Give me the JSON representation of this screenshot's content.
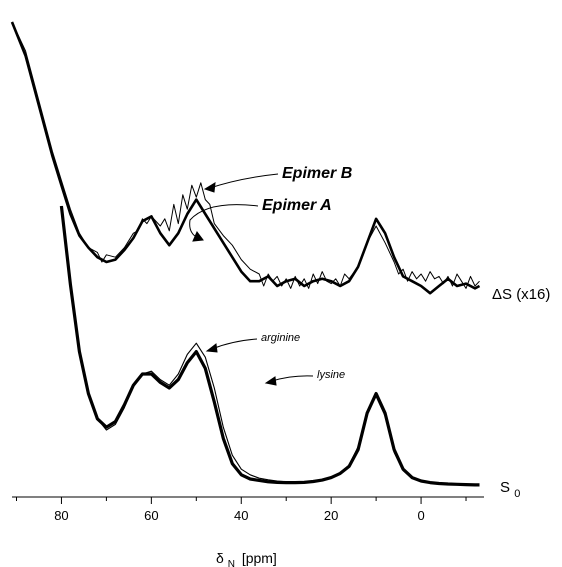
{
  "chart_data": {
    "type": "line",
    "xlabel_main": "δ",
    "xlabel_sub": "N",
    "xlabel_unit": "[ppm]",
    "x_reversed": true,
    "xlim": [
      -14,
      91
    ],
    "xticks": [
      80,
      60,
      40,
      20,
      0
    ],
    "xticklabels": [
      "80",
      "60",
      "40",
      "20",
      "0"
    ],
    "grid": false,
    "label_s0_main": "S",
    "label_s0_sub": "0",
    "label_ds": "ΔS (x16)",
    "annotations": {
      "epimer_b": "Epimer B",
      "epimer_a": "Epimer A",
      "arginine": "arginine",
      "lysine": "lysine"
    },
    "series": [
      {
        "name": "S0 (thick)",
        "x": [
          80,
          78,
          76,
          74,
          72,
          70,
          68,
          66,
          64,
          62,
          60,
          58,
          56,
          54,
          52,
          50,
          48,
          46,
          44,
          42,
          40,
          38,
          36,
          34,
          32,
          30,
          28,
          26,
          24,
          22,
          20,
          18,
          16,
          14,
          12,
          10,
          8,
          6,
          4,
          2,
          0,
          -2,
          -4,
          -6,
          -8,
          -10,
          -12,
          -13
        ],
        "y": [
          1.0,
          0.72,
          0.48,
          0.33,
          0.24,
          0.21,
          0.23,
          0.29,
          0.36,
          0.4,
          0.4,
          0.37,
          0.35,
          0.38,
          0.44,
          0.48,
          0.42,
          0.3,
          0.17,
          0.08,
          0.04,
          0.025,
          0.02,
          0.015,
          0.013,
          0.012,
          0.012,
          0.013,
          0.016,
          0.021,
          0.03,
          0.045,
          0.07,
          0.13,
          0.26,
          0.33,
          0.26,
          0.13,
          0.06,
          0.03,
          0.018,
          0.012,
          0.009,
          0.007,
          0.006,
          0.005,
          0.004,
          0.004
        ]
      },
      {
        "name": "S0 (thin)",
        "x": [
          80,
          78,
          76,
          74,
          72,
          70,
          68,
          66,
          64,
          62,
          60,
          58,
          56,
          54,
          52,
          50,
          48,
          46,
          44,
          42,
          40,
          38,
          36,
          34,
          32,
          30,
          28,
          26,
          24,
          22,
          20,
          18,
          16,
          14,
          12,
          10,
          8,
          6,
          4,
          2,
          0,
          -2,
          -4,
          -6,
          -8,
          -10,
          -12,
          -13
        ],
        "y": [
          1.0,
          0.73,
          0.49,
          0.33,
          0.24,
          0.2,
          0.22,
          0.28,
          0.36,
          0.4,
          0.41,
          0.38,
          0.36,
          0.4,
          0.47,
          0.51,
          0.46,
          0.35,
          0.21,
          0.11,
          0.06,
          0.04,
          0.028,
          0.022,
          0.018,
          0.015,
          0.014,
          0.015,
          0.018,
          0.023,
          0.032,
          0.048,
          0.075,
          0.14,
          0.26,
          0.32,
          0.25,
          0.12,
          0.055,
          0.028,
          0.016,
          0.011,
          0.008,
          0.006,
          0.005,
          0.005,
          0.004,
          0.004
        ]
      },
      {
        "name": "ΔS thick (Epimer A)",
        "x": [
          91,
          88,
          86,
          84,
          82,
          80,
          78,
          76,
          74,
          72,
          70,
          68,
          66,
          64,
          62,
          60,
          58,
          56,
          54,
          52,
          50,
          48,
          46,
          44,
          42,
          40,
          38,
          36,
          34,
          32,
          30,
          28,
          26,
          24,
          22,
          20,
          18,
          16,
          14,
          12,
          10,
          8,
          6,
          4,
          2,
          0,
          -2,
          -4,
          -6,
          -8,
          -10,
          -12,
          -13
        ],
        "y": [
          1.0,
          0.86,
          0.72,
          0.58,
          0.44,
          0.32,
          0.2,
          0.11,
          0.06,
          0.02,
          0.0,
          0.01,
          0.05,
          0.1,
          0.17,
          0.19,
          0.12,
          0.07,
          0.12,
          0.2,
          0.26,
          0.2,
          0.14,
          0.08,
          0.02,
          -0.04,
          -0.08,
          -0.08,
          -0.06,
          -0.1,
          -0.08,
          -0.07,
          -0.1,
          -0.08,
          -0.07,
          -0.08,
          -0.1,
          -0.08,
          -0.02,
          0.08,
          0.18,
          0.12,
          0.02,
          -0.06,
          -0.08,
          -0.1,
          -0.13,
          -0.1,
          -0.07,
          -0.1,
          -0.09,
          -0.11,
          -0.1
        ]
      },
      {
        "name": "ΔS thin (Epimer B)",
        "x": [
          91,
          88,
          86,
          84,
          82,
          80,
          78,
          76,
          74,
          72,
          71,
          70,
          68,
          66,
          64,
          63,
          62,
          61,
          60,
          58,
          57,
          56,
          55,
          54,
          53,
          52,
          51,
          50,
          49,
          48,
          47,
          46,
          44,
          42,
          40,
          38,
          36,
          35,
          34,
          33,
          32,
          31,
          30,
          29,
          28,
          27,
          26,
          25,
          24,
          23,
          22,
          21,
          20,
          19,
          18,
          17,
          16,
          14,
          12,
          10,
          8,
          6,
          5,
          4,
          3,
          2,
          1,
          0,
          -1,
          -2,
          -3,
          -4,
          -5,
          -6,
          -7,
          -8,
          -9,
          -10,
          -11,
          -12,
          -13
        ],
        "y": [
          1.0,
          0.88,
          0.74,
          0.6,
          0.46,
          0.34,
          0.22,
          0.12,
          0.06,
          0.04,
          0.0,
          0.03,
          0.02,
          0.06,
          0.12,
          0.13,
          0.18,
          0.16,
          0.19,
          0.15,
          0.18,
          0.13,
          0.24,
          0.16,
          0.28,
          0.22,
          0.32,
          0.27,
          0.33,
          0.26,
          0.24,
          0.16,
          0.11,
          0.07,
          0.01,
          -0.03,
          -0.05,
          -0.1,
          -0.05,
          -0.08,
          -0.06,
          -0.1,
          -0.07,
          -0.11,
          -0.06,
          -0.1,
          -0.07,
          -0.11,
          -0.05,
          -0.09,
          -0.04,
          -0.08,
          -0.09,
          -0.07,
          -0.1,
          -0.05,
          -0.07,
          -0.02,
          0.08,
          0.15,
          0.08,
          0.0,
          -0.05,
          -0.03,
          -0.08,
          -0.04,
          -0.07,
          -0.05,
          -0.08,
          -0.04,
          -0.07,
          -0.06,
          -0.09,
          -0.06,
          -0.1,
          -0.05,
          -0.08,
          -0.11,
          -0.06,
          -0.1,
          -0.08
        ]
      }
    ]
  }
}
